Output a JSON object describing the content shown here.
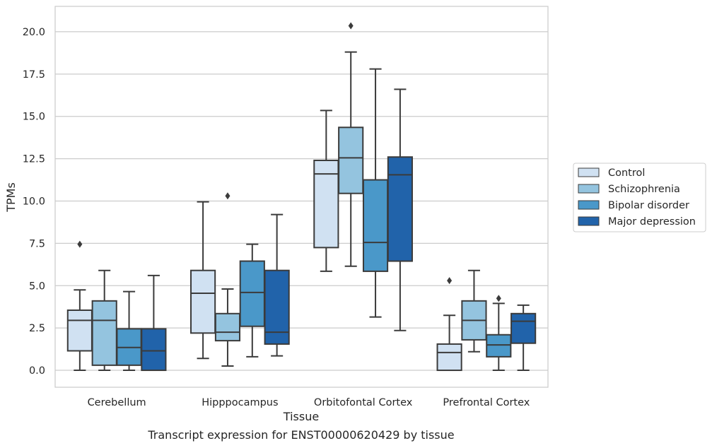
{
  "chart_data": {
    "type": "box",
    "xlabel": "Tissue",
    "ylabel": "TPMs",
    "ylim": [
      -1.0,
      21.5
    ],
    "yticks": [
      0.0,
      2.5,
      5.0,
      7.5,
      10.0,
      12.5,
      15.0,
      17.5,
      20.0
    ],
    "ytick_labels": [
      "0.0",
      "2.5",
      "5.0",
      "7.5",
      "10.0",
      "12.5",
      "15.0",
      "17.5",
      "20.0"
    ],
    "grid": "horizontal",
    "legend_position": "right",
    "categories": [
      "Cerebellum",
      "Hipppocampus",
      "Orbitofontal Cortex",
      "Prefrontal Cortex"
    ],
    "series": [
      {
        "name": "Control",
        "color": "#d0e1f2",
        "boxes": [
          {
            "whisker_low": 0.0,
            "q1": 1.15,
            "median": 2.95,
            "q3": 3.55,
            "whisker_high": 4.75,
            "outliers": [
              7.45
            ]
          },
          {
            "whisker_low": 0.7,
            "q1": 2.2,
            "median": 4.55,
            "q3": 5.9,
            "whisker_high": 9.95,
            "outliers": []
          },
          {
            "whisker_low": 5.85,
            "q1": 7.25,
            "median": 11.6,
            "q3": 12.4,
            "whisker_high": 15.35,
            "outliers": []
          },
          {
            "whisker_low": 0.0,
            "q1": 0.0,
            "median": 1.05,
            "q3": 1.55,
            "whisker_high": 3.25,
            "outliers": [
              5.3
            ]
          }
        ]
      },
      {
        "name": "Schizophrenia",
        "color": "#94c4df",
        "boxes": [
          {
            "whisker_low": 0.0,
            "q1": 0.3,
            "median": 2.95,
            "q3": 4.1,
            "whisker_high": 5.9,
            "outliers": []
          },
          {
            "whisker_low": 0.25,
            "q1": 1.75,
            "median": 2.25,
            "q3": 3.35,
            "whisker_high": 4.8,
            "outliers": [
              10.3
            ]
          },
          {
            "whisker_low": 6.15,
            "q1": 10.45,
            "median": 12.55,
            "q3": 14.35,
            "whisker_high": 18.8,
            "outliers": [
              20.35
            ]
          },
          {
            "whisker_low": 1.1,
            "q1": 1.8,
            "median": 2.95,
            "q3": 4.1,
            "whisker_high": 5.9,
            "outliers": []
          }
        ]
      },
      {
        "name": "Bipolar disorder",
        "color": "#4a98c9",
        "boxes": [
          {
            "whisker_low": 0.0,
            "q1": 0.3,
            "median": 1.35,
            "q3": 2.45,
            "whisker_high": 4.65,
            "outliers": []
          },
          {
            "whisker_low": 0.8,
            "q1": 2.6,
            "median": 4.6,
            "q3": 6.45,
            "whisker_high": 7.45,
            "outliers": []
          },
          {
            "whisker_low": 3.15,
            "q1": 5.85,
            "median": 7.55,
            "q3": 11.25,
            "whisker_high": 17.8,
            "outliers": []
          },
          {
            "whisker_low": 0.0,
            "q1": 0.8,
            "median": 1.5,
            "q3": 2.1,
            "whisker_high": 3.95,
            "outliers": [
              4.25
            ]
          }
        ]
      },
      {
        "name": "Major depression",
        "color": "#2163aa",
        "boxes": [
          {
            "whisker_low": 0.0,
            "q1": 0.0,
            "median": 1.15,
            "q3": 2.45,
            "whisker_high": 5.6,
            "outliers": []
          },
          {
            "whisker_low": 0.85,
            "q1": 1.55,
            "median": 2.25,
            "q3": 5.9,
            "whisker_high": 9.2,
            "outliers": []
          },
          {
            "whisker_low": 2.35,
            "q1": 6.45,
            "median": 11.55,
            "q3": 12.6,
            "whisker_high": 16.6,
            "outliers": []
          },
          {
            "whisker_low": 0.0,
            "q1": 1.6,
            "median": 2.9,
            "q3": 3.35,
            "whisker_high": 3.85,
            "outliers": []
          }
        ]
      }
    ]
  },
  "caption": "Transcript expression for ENST00000620429 by tissue"
}
